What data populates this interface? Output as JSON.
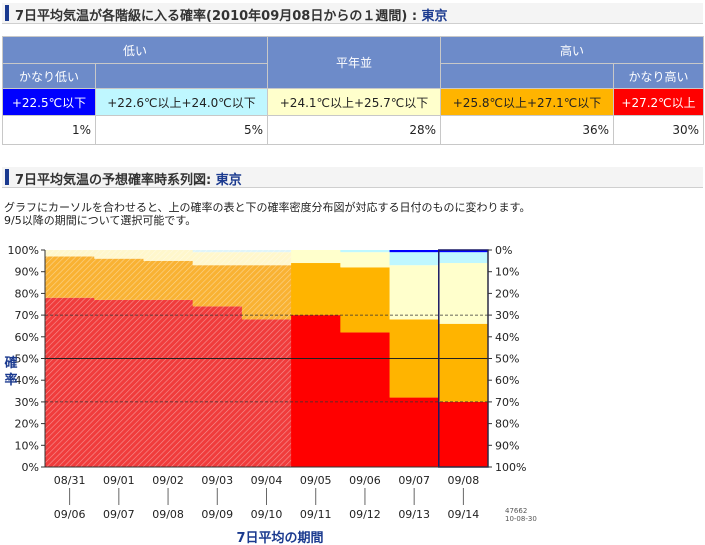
{
  "header1": {
    "title": "7日平均気温が各階級に入る確率(2010年09月08日からの１週間) : ",
    "city": "東京"
  },
  "table": {
    "group_low": "低い",
    "group_normal": "平年並",
    "group_high": "高い",
    "sub_very_low": "かなり低い",
    "sub_very_high": "かなり高い",
    "ranges": [
      "+22.5℃以下",
      "+22.6℃以上+24.0℃以下",
      "+24.1℃以上+25.7℃以下",
      "+25.8℃以上+27.1℃以下",
      "+27.2℃以上"
    ],
    "range_colors": [
      "#0000ff",
      "#bff7ff",
      "#ffffcc",
      "#ffb400",
      "#ff0000"
    ],
    "percents": [
      "1%",
      "5%",
      "28%",
      "36%",
      "30%"
    ]
  },
  "header2": {
    "title": "7日平均気温の予想確率時系列図: ",
    "city": "東京"
  },
  "note": {
    "line1": "グラフにカーソルを合わせると、上の確率の表と下の確率密度分布図が対応する日付のものに変わります。",
    "line2": "9/5以降の期間について選択可能です。"
  },
  "chart_data": {
    "type": "area",
    "ylabel_left": "確率",
    "xlabel": "7日平均の期間",
    "left_ticks": [
      "100%",
      "90%",
      "80%",
      "70%",
      "60%",
      "50%",
      "40%",
      "30%",
      "20%",
      "10%",
      "0%"
    ],
    "right_ticks": [
      "0%",
      "10%",
      "20%",
      "30%",
      "40%",
      "50%",
      "60%",
      "70%",
      "80%",
      "90%",
      "100%"
    ],
    "period_start": [
      "08/31",
      "09/01",
      "09/02",
      "09/03",
      "09/04",
      "09/05",
      "09/06",
      "09/07",
      "09/08"
    ],
    "period_end": [
      "09/06",
      "09/07",
      "09/08",
      "09/09",
      "09/10",
      "09/11",
      "09/12",
      "09/13",
      "09/14"
    ],
    "stamp": [
      "47662",
      "10-08-30"
    ],
    "colors": {
      "very_high": "#ff0000",
      "high": "#ffb400",
      "normal": "#ffffcc",
      "low": "#bff7ff",
      "very_low": "#0000ff",
      "past_very_high": "#f03c3c",
      "past_high": "#f9b233",
      "past_normal": "#fff7cc",
      "past_low": "#e0f4f8"
    },
    "series": [
      {
        "name": "かなり高い",
        "values": [
          78,
          77,
          77,
          74,
          68,
          70,
          62,
          32,
          30
        ]
      },
      {
        "name": "高い",
        "values": [
          19,
          19,
          18,
          19,
          25,
          24,
          30,
          36,
          36
        ]
      },
      {
        "name": "平年並",
        "values": [
          3,
          4,
          5,
          6,
          6,
          6,
          7,
          25,
          28
        ]
      },
      {
        "name": "低い",
        "values": [
          0,
          0,
          0,
          1,
          1,
          0,
          1,
          6,
          5
        ]
      },
      {
        "name": "かなり低い",
        "values": [
          0,
          0,
          0,
          0,
          0,
          0,
          0,
          1,
          1
        ]
      }
    ]
  }
}
